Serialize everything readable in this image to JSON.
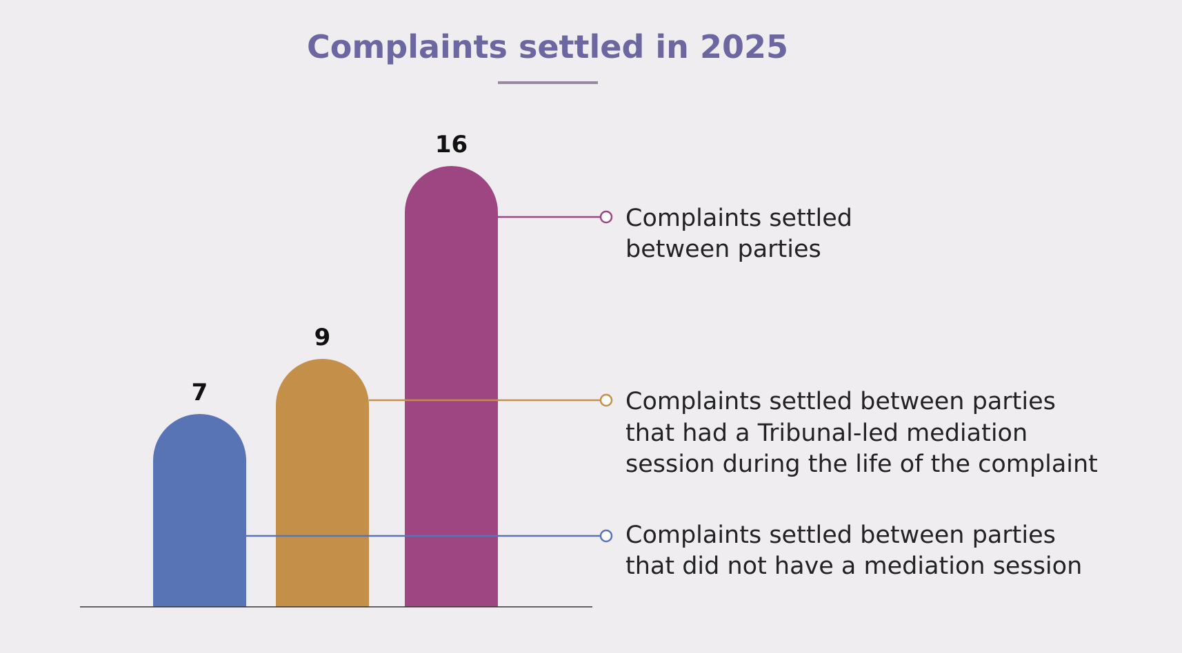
{
  "chart_data": {
    "type": "bar",
    "title": "Complaints settled in 2025",
    "categories": [
      "Complaints settled between parties that did not have a mediation session",
      "Complaints settled between parties that had a Tribunal-led mediation session during the life of the complaint",
      "Complaints settled between parties"
    ],
    "values": [
      7,
      9,
      16
    ],
    "value_labels": [
      "7",
      "9",
      "16"
    ],
    "annotations": [
      [
        "Complaints settled between parties",
        "that did not have a mediation session"
      ],
      [
        "Complaints settled between parties",
        "that had a Tribunal-led mediation",
        "session during the life of the complaint"
      ],
      [
        "Complaints settled",
        "between parties"
      ]
    ],
    "colors": [
      "#5874b5",
      "#c48f48",
      "#9e4682"
    ],
    "accent_colors": {
      "title": "#6c67a0",
      "title_rule": "#9a8aa0",
      "baseline": "#333333"
    },
    "ylim": [
      0,
      16
    ],
    "grid": false,
    "legend": "callout labels to the right of the bars",
    "xlabel": "",
    "ylabel": ""
  }
}
